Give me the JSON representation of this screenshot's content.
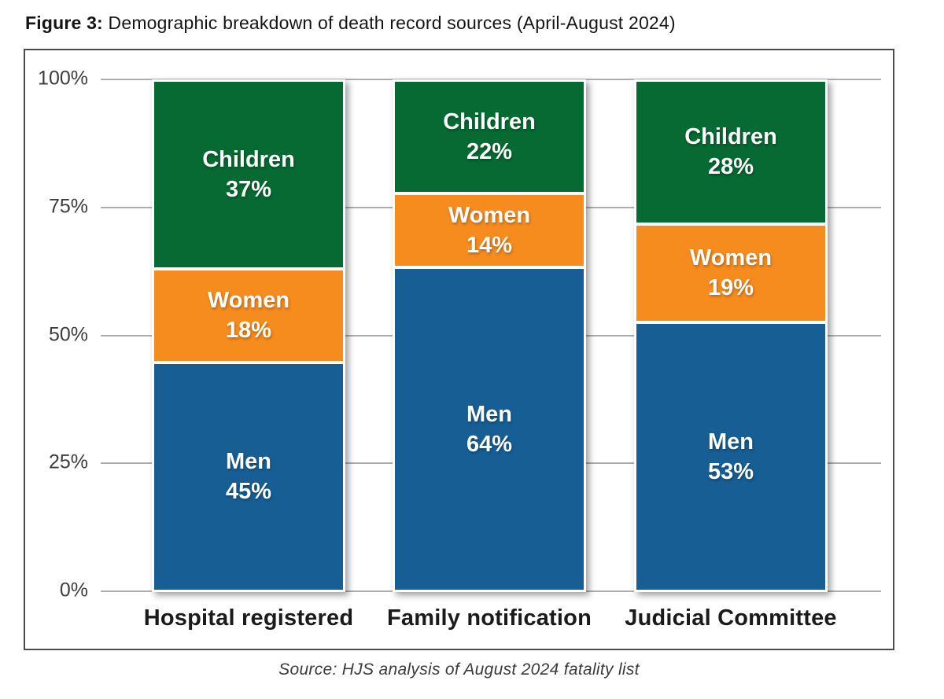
{
  "figure": {
    "title_prefix": "Figure 3:",
    "title_text": " Demographic breakdown of death record sources (April-August 2024)",
    "source": "Source: HJS analysis of August 2024 fatality list"
  },
  "chart_data": {
    "type": "bar",
    "subtype": "stacked-100-percent",
    "title": "Figure 3: Demographic breakdown of death record sources (April-August 2024)",
    "categories": [
      "Hospital registered",
      "Family notification",
      "Judicial Committee"
    ],
    "series": [
      {
        "name": "Men",
        "color": "#175E94",
        "values": [
          45,
          64,
          53
        ]
      },
      {
        "name": "Women",
        "color": "#F68B1E",
        "values": [
          18,
          14,
          19
        ]
      },
      {
        "name": "Children",
        "color": "#066A32",
        "values": [
          37,
          22,
          28
        ]
      }
    ],
    "stack_order_bottom_to_top": [
      "Men",
      "Women",
      "Children"
    ],
    "segment_labels": "name and percent shown inside each segment",
    "yticks": [
      {
        "label": "100%",
        "value": 100
      },
      {
        "label": "75%",
        "value": 75
      },
      {
        "label": "50%",
        "value": 50
      },
      {
        "label": "25%",
        "value": 25
      },
      {
        "label": "0%",
        "value": 0
      }
    ],
    "ylim": [
      0,
      100
    ],
    "grid": true,
    "legend_position": "none",
    "source_note": "Source: HJS analysis of August 2024 fatality list"
  },
  "colors": {
    "men_blue": "#175E94",
    "women_orange": "#F68B1E",
    "children_green": "#066A32",
    "gridline_gray": "#AEAEAE",
    "box_border_gray": "#4B4B4B",
    "label_dark": "#1A1A1A",
    "axis_text_gray": "#3D3D3D"
  }
}
